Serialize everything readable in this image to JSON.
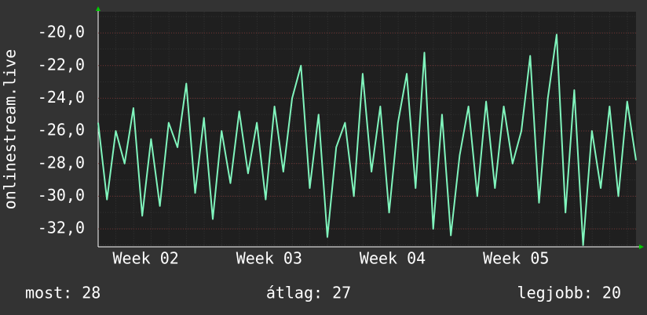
{
  "chart_data": {
    "type": "line",
    "ylabel": "onlinestream.live",
    "x": [
      0,
      0.5,
      1,
      1.5,
      2,
      2.5,
      3,
      3.5,
      4,
      4.5,
      5,
      5.5,
      6,
      6.5,
      7,
      7.5,
      8,
      8.5,
      9,
      9.5,
      10,
      10.5,
      11,
      11.5,
      12,
      12.5,
      13,
      13.5,
      14,
      14.5,
      15,
      15.5,
      16,
      16.5,
      17,
      17.5,
      18,
      18.5,
      19,
      19.5,
      20,
      20.5,
      21,
      21.5,
      22,
      22.5,
      23,
      23.5,
      24,
      24.5,
      25,
      25.5,
      26,
      26.5,
      27,
      27.5,
      28,
      28.5,
      29,
      29.5,
      30,
      30.5
    ],
    "series": [
      {
        "color": "#80f5bd",
        "values": [
          -25.5,
          -30.2,
          -26,
          -28,
          -24.6,
          -31.2,
          -26.5,
          -30.6,
          -25.5,
          -27,
          -23.1,
          -29.8,
          -25.2,
          -31.4,
          -26,
          -29.2,
          -24.8,
          -28.6,
          -25.5,
          -30.2,
          -24.5,
          -28.5,
          -24,
          -22,
          -29.5,
          -25,
          -32.5,
          -27,
          -25.5,
          -30,
          -22.5,
          -28.5,
          -24.5,
          -31,
          -25.5,
          -22.5,
          -29.5,
          -21.2,
          -32,
          -25,
          -32.4,
          -27.5,
          -24.5,
          -30,
          -24.2,
          -29.5,
          -24.5,
          -28,
          -26,
          -21.4,
          -30.4,
          -24,
          -20.1,
          -31,
          -23.5,
          -33,
          -26,
          -29.5,
          -24.5,
          -30,
          -24.2,
          -27.8
        ]
      }
    ],
    "xlim": [
      0,
      30.5
    ],
    "xticks": [
      {
        "value": 2.7,
        "label": "Week 02"
      },
      {
        "value": 9.7,
        "label": "Week 03"
      },
      {
        "value": 16.7,
        "label": "Week 04"
      },
      {
        "value": 23.7,
        "label": "Week 05"
      }
    ],
    "ylim": [
      -33.1,
      -18.7
    ],
    "yticks": [
      {
        "value": -20,
        "label": "-20,0"
      },
      {
        "value": -22,
        "label": "-22,0"
      },
      {
        "value": -24,
        "label": "-24,0"
      },
      {
        "value": -26,
        "label": "-26,0"
      },
      {
        "value": -28,
        "label": "-28,0"
      },
      {
        "value": -30,
        "label": "-30,0"
      },
      {
        "value": -32,
        "label": "-32,0"
      }
    ],
    "grid": true,
    "annotations": [
      "most: 28",
      "átlag: 27",
      "legjobb: 20"
    ]
  }
}
